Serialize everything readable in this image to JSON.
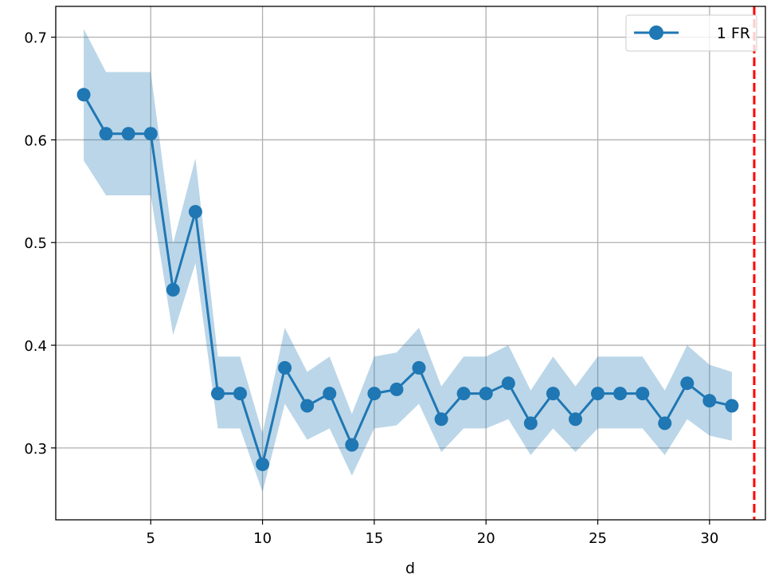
{
  "chart_data": {
    "type": "line",
    "title": "",
    "xlabel": "d",
    "ylabel": "",
    "xlim": [
      0.75,
      32.5
    ],
    "ylim": [
      0.23,
      0.73
    ],
    "xticks": [
      5,
      10,
      15,
      20,
      25,
      30
    ],
    "yticks": [
      0.3,
      0.4,
      0.5,
      0.6,
      0.7
    ],
    "xtick_labels": [
      "5",
      "10",
      "15",
      "20",
      "25",
      "30"
    ],
    "ytick_labels": [
      "0.3",
      "0.4",
      "0.5",
      "0.6",
      "0.7"
    ],
    "grid": true,
    "legend_position": "top-right",
    "series": [
      {
        "name": "1 FR",
        "color": "#1f77b4",
        "band_color": "#1f77b4",
        "x": [
          2,
          3,
          4,
          5,
          6,
          7,
          8,
          9,
          10,
          11,
          12,
          13,
          14,
          15,
          16,
          17,
          18,
          19,
          20,
          21,
          22,
          23,
          24,
          25,
          26,
          27,
          28,
          29,
          30,
          31
        ],
        "y": [
          0.644,
          0.606,
          0.606,
          0.606,
          0.454,
          0.53,
          0.353,
          0.353,
          0.284,
          0.378,
          0.341,
          0.353,
          0.303,
          0.353,
          0.357,
          0.378,
          0.328,
          0.353,
          0.353,
          0.363,
          0.324,
          0.353,
          0.328,
          0.353,
          0.353,
          0.353,
          0.324,
          0.363,
          0.346,
          0.341
        ],
        "lower": [
          0.58,
          0.546,
          0.546,
          0.546,
          0.41,
          0.48,
          0.319,
          0.319,
          0.257,
          0.343,
          0.308,
          0.319,
          0.273,
          0.319,
          0.322,
          0.343,
          0.296,
          0.319,
          0.319,
          0.328,
          0.293,
          0.319,
          0.296,
          0.319,
          0.319,
          0.319,
          0.293,
          0.328,
          0.312,
          0.307
        ],
        "upper": [
          0.708,
          0.666,
          0.666,
          0.666,
          0.499,
          0.582,
          0.389,
          0.389,
          0.314,
          0.417,
          0.374,
          0.389,
          0.333,
          0.389,
          0.393,
          0.417,
          0.36,
          0.389,
          0.389,
          0.4,
          0.356,
          0.389,
          0.36,
          0.389,
          0.389,
          0.389,
          0.356,
          0.4,
          0.381,
          0.374
        ]
      }
    ],
    "reference_lines": [
      {
        "axis": "x",
        "value": 32,
        "color": "#ff0000",
        "style": "dashed"
      }
    ]
  }
}
